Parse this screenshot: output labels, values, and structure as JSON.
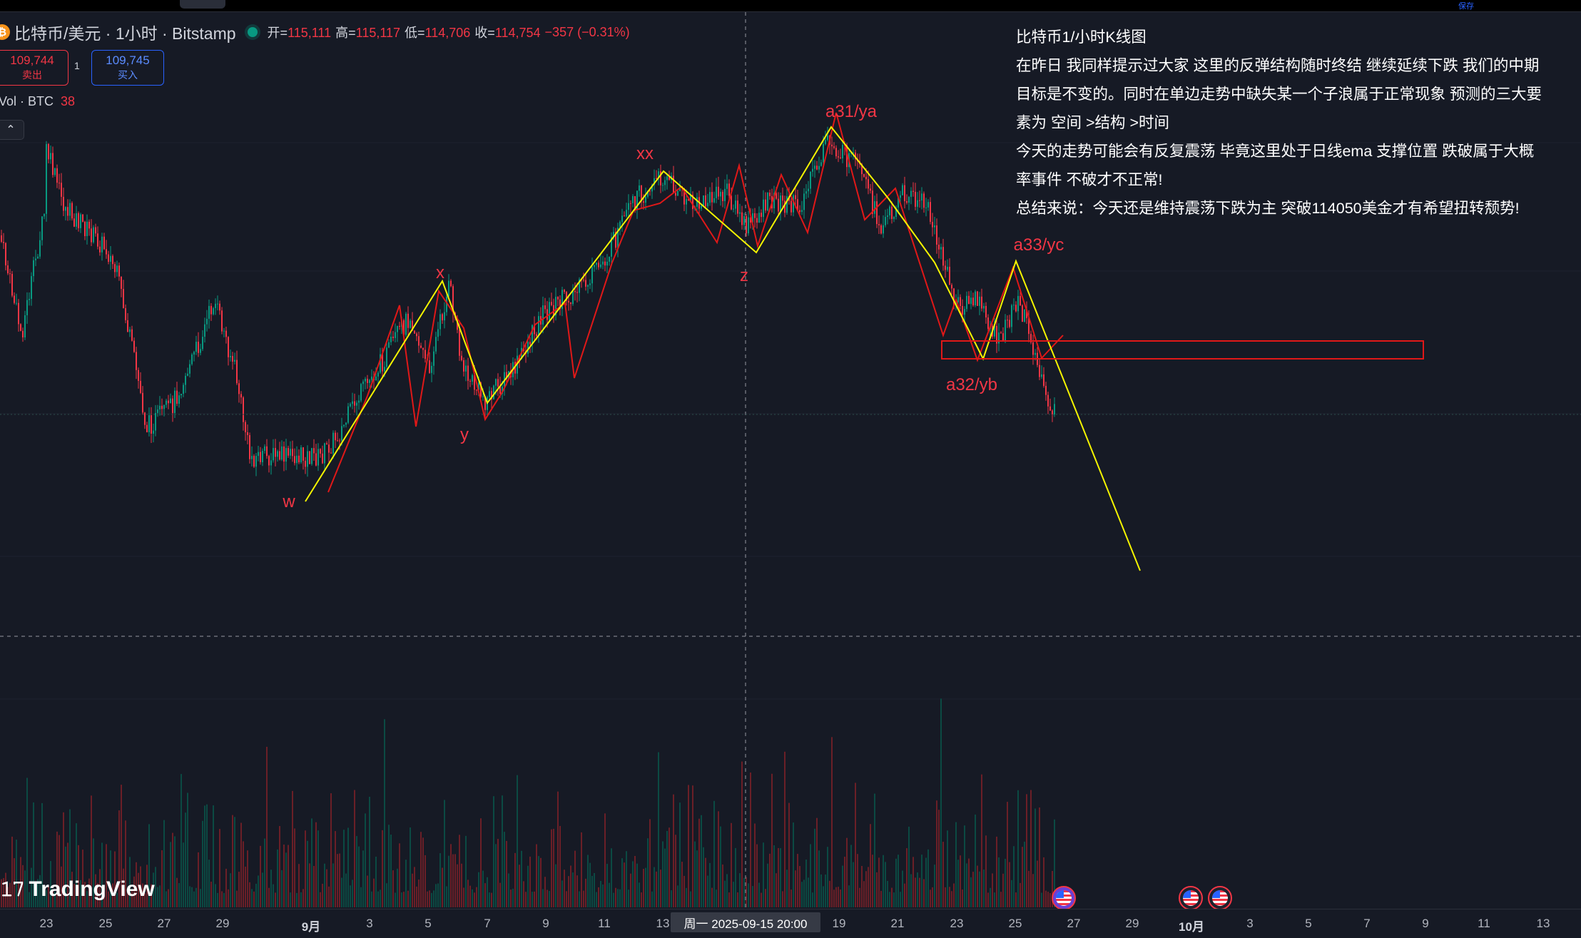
{
  "header": {
    "symbol": "比特币/美元 · 1小时 · Bitstamp",
    "open_label": "开=",
    "open": "115,111",
    "high_label": "高=",
    "high": "115,117",
    "low_label": "低=",
    "low": "114,706",
    "close_label": "收=",
    "close": "114,754",
    "change": "−357 (−0.31%)"
  },
  "trade": {
    "sell_price": "109,744",
    "sell_label": "卖出",
    "qty": "1",
    "buy_price": "109,745",
    "buy_label": "买入"
  },
  "volume": {
    "label": "Vol · BTC",
    "value": "38"
  },
  "notes": {
    "title": "比特币1/小时K线图",
    "lines": [
      "在昨日 我同样提示过大家 这里的反弹结构随时终结 继续延续下跌 我们的中期",
      "目标是不变的。同时在单边走势中缺失某一个子浪属于正常现象 预测的三大要",
      "素为 空间 >结构 >时间",
      "今天的走势可能会有反复震荡 毕竟这里处于日线ema 支撑位置 跌破属于大概",
      "率事件 不破才不正常!",
      "总结来说：今天还是维持震荡下跌为主 突破114050美金才有希望扭转颓势!"
    ]
  },
  "wave_labels": {
    "w": "w",
    "x": "x",
    "y": "y",
    "xx": "xx",
    "z": "z",
    "a31": "a31/ya",
    "a32": "a32/yb",
    "a33": "a33/yc"
  },
  "x_axis": {
    "ticks": [
      "23",
      "25",
      "27",
      "29",
      "9月",
      "3",
      "5",
      "7",
      "9",
      "11",
      "13",
      "19",
      "21",
      "23",
      "25",
      "27",
      "29",
      "10月",
      "3",
      "5",
      "7",
      "9",
      "11",
      "13"
    ],
    "crosshair_label": "周一 2025-09-15   20:00"
  },
  "branding": {
    "logo_text": "TradingView",
    "save_label": "保存"
  },
  "colors": {
    "up": "#089981",
    "down": "#f23645",
    "wave_line": "#f5f500",
    "sub_wave": "#e01818",
    "background": "#161a25"
  }
}
